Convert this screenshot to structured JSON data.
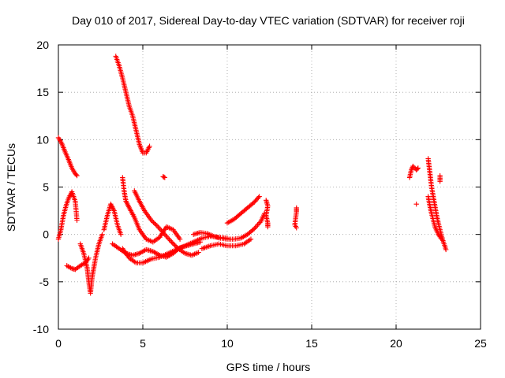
{
  "chart_data": {
    "type": "scatter",
    "title": "Day 010 of 2017, Sidereal Day-to-day VTEC variation (SDTVAR) for receiver roji",
    "xlabel": "GPS time / hours",
    "ylabel": "SDTVAR / TECUs",
    "xlim": [
      0,
      25
    ],
    "ylim": [
      -10,
      20
    ],
    "xticks": [
      0,
      5,
      10,
      15,
      20,
      25
    ],
    "yticks": [
      -10,
      -5,
      0,
      5,
      10,
      15,
      20
    ],
    "xtick_labels": [
      "0",
      "5",
      "10",
      "15",
      "20",
      "25"
    ],
    "ytick_labels": [
      "-10",
      "-5",
      "0",
      "5",
      "10",
      "15",
      "20"
    ],
    "grid": true,
    "marker": "+",
    "color": "#ff0000",
    "series": [
      {
        "name": "roji",
        "tracks": [
          [
            [
              0.0,
              10.2
            ],
            [
              0.2,
              9.6
            ],
            [
              0.4,
              8.7
            ],
            [
              0.6,
              7.9
            ],
            [
              0.8,
              7.0
            ],
            [
              1.0,
              6.4
            ],
            [
              1.1,
              6.2
            ]
          ],
          [
            [
              0.0,
              -0.5
            ],
            [
              0.15,
              0.5
            ],
            [
              0.3,
              2.0
            ],
            [
              0.45,
              3.0
            ],
            [
              0.6,
              3.8
            ],
            [
              0.8,
              4.5
            ],
            [
              1.0,
              3.5
            ],
            [
              1.1,
              1.5
            ]
          ],
          [
            [
              0.5,
              -3.3
            ],
            [
              0.8,
              -3.6
            ],
            [
              1.0,
              -3.7
            ],
            [
              1.3,
              -3.3
            ],
            [
              1.6,
              -3.0
            ],
            [
              1.8,
              -2.5
            ]
          ],
          [
            [
              1.3,
              -1.0
            ],
            [
              1.5,
              -2.0
            ],
            [
              1.7,
              -3.5
            ],
            [
              1.8,
              -5.0
            ],
            [
              1.9,
              -6.2
            ],
            [
              2.0,
              -4.5
            ],
            [
              2.2,
              -2.5
            ],
            [
              2.4,
              -1.0
            ],
            [
              2.6,
              0.0
            ]
          ],
          [
            [
              2.7,
              0.5
            ],
            [
              2.9,
              2.0
            ],
            [
              3.1,
              3.2
            ],
            [
              3.3,
              2.5
            ],
            [
              3.5,
              1.0
            ],
            [
              3.7,
              0.0
            ]
          ],
          [
            [
              3.4,
              18.8
            ],
            [
              3.6,
              17.8
            ],
            [
              3.8,
              16.5
            ],
            [
              4.0,
              15.0
            ],
            [
              4.2,
              13.5
            ],
            [
              4.4,
              12.5
            ],
            [
              4.6,
              11.0
            ],
            [
              4.8,
              9.5
            ],
            [
              5.0,
              8.6
            ],
            [
              5.2,
              8.6
            ],
            [
              5.4,
              9.3
            ]
          ],
          [
            [
              3.8,
              6.0
            ],
            [
              3.9,
              4.5
            ],
            [
              4.0,
              3.5
            ],
            [
              4.2,
              2.8
            ],
            [
              4.5,
              1.8
            ],
            [
              4.8,
              0.5
            ],
            [
              5.2,
              -0.5
            ],
            [
              5.6,
              -0.8
            ],
            [
              6.0,
              -0.3
            ],
            [
              6.4,
              0.8
            ],
            [
              6.8,
              0.5
            ],
            [
              7.2,
              -0.5
            ]
          ],
          [
            [
              3.8,
              -1.5
            ],
            [
              4.2,
              -2.5
            ],
            [
              4.6,
              -3.0
            ],
            [
              5.0,
              -3.0
            ],
            [
              5.5,
              -2.6
            ],
            [
              6.0,
              -2.4
            ],
            [
              6.5,
              -2.0
            ],
            [
              7.0,
              -1.6
            ],
            [
              7.5,
              -1.2
            ],
            [
              8.0,
              -0.8
            ],
            [
              8.5,
              -0.4
            ],
            [
              9.0,
              -0.2
            ],
            [
              9.5,
              -0.3
            ],
            [
              10.0,
              -0.4
            ]
          ],
          [
            [
              3.2,
              -1.0
            ],
            [
              3.6,
              -1.5
            ],
            [
              4.0,
              -2.0
            ],
            [
              4.4,
              -2.2
            ],
            [
              4.8,
              -2.0
            ],
            [
              5.2,
              -1.6
            ],
            [
              5.6,
              -1.8
            ],
            [
              6.0,
              -2.2
            ],
            [
              6.4,
              -2.4
            ],
            [
              6.8,
              -2.0
            ],
            [
              7.2,
              -1.4
            ],
            [
              7.6,
              -1.2
            ],
            [
              8.0,
              -1.0
            ],
            [
              8.4,
              -0.8
            ]
          ],
          [
            [
              4.5,
              4.6
            ],
            [
              4.8,
              3.5
            ],
            [
              5.1,
              2.5
            ],
            [
              5.5,
              1.5
            ],
            [
              5.9,
              0.8
            ],
            [
              6.3,
              0.0
            ],
            [
              6.7,
              -0.8
            ],
            [
              7.1,
              -1.5
            ],
            [
              7.5,
              -2.0
            ],
            [
              7.9,
              -2.2
            ],
            [
              8.3,
              -1.9
            ]
          ],
          [
            [
              8.0,
              0.0
            ],
            [
              8.4,
              0.2
            ],
            [
              8.8,
              0.1
            ],
            [
              9.2,
              -0.2
            ],
            [
              9.6,
              -0.4
            ],
            [
              10.0,
              -0.5
            ],
            [
              10.4,
              -0.5
            ],
            [
              10.8,
              -0.4
            ],
            [
              11.2,
              0.0
            ],
            [
              11.6,
              0.6
            ],
            [
              12.0,
              1.4
            ],
            [
              12.2,
              2.2
            ]
          ],
          [
            [
              8.5,
              -1.5
            ],
            [
              9.0,
              -1.2
            ],
            [
              9.5,
              -1.0
            ],
            [
              10.0,
              -1.2
            ],
            [
              10.5,
              -1.2
            ],
            [
              11.0,
              -1.0
            ],
            [
              11.4,
              -0.5
            ]
          ],
          [
            [
              10.0,
              1.2
            ],
            [
              10.4,
              1.6
            ],
            [
              10.8,
              2.2
            ],
            [
              11.2,
              2.8
            ],
            [
              11.6,
              3.4
            ],
            [
              11.9,
              4.0
            ]
          ],
          [
            [
              12.3,
              3.6
            ],
            [
              12.4,
              3.0
            ],
            [
              12.3,
              2.0
            ],
            [
              12.4,
              1.2
            ],
            [
              12.4,
              0.8
            ]
          ],
          [
            [
              14.1,
              2.8
            ],
            [
              14.1,
              2.4
            ],
            [
              14.0,
              1.0
            ],
            [
              14.1,
              0.7
            ]
          ],
          [
            [
              6.2,
              6.1
            ],
            [
              6.3,
              6.0
            ]
          ],
          [
            [
              20.8,
              6.0
            ],
            [
              20.9,
              6.8
            ],
            [
              21.0,
              7.2
            ],
            [
              21.2,
              6.8
            ],
            [
              21.3,
              7.0
            ]
          ],
          [
            [
              21.2,
              3.2
            ]
          ],
          [
            [
              21.9,
              8.0
            ],
            [
              22.0,
              6.5
            ],
            [
              22.1,
              5.0
            ],
            [
              22.2,
              4.0
            ],
            [
              22.3,
              3.0
            ],
            [
              22.4,
              2.0
            ],
            [
              22.5,
              1.2
            ],
            [
              22.6,
              0.5
            ],
            [
              22.7,
              -0.2
            ],
            [
              22.8,
              -0.8
            ],
            [
              22.9,
              -1.3
            ],
            [
              22.95,
              -1.6
            ]
          ],
          [
            [
              21.9,
              4.0
            ],
            [
              22.0,
              3.0
            ],
            [
              22.1,
              2.2
            ],
            [
              22.2,
              1.5
            ],
            [
              22.3,
              0.8
            ],
            [
              22.5,
              0.0
            ],
            [
              22.7,
              -0.5
            ]
          ],
          [
            [
              22.6,
              6.2
            ],
            [
              22.6,
              5.6
            ]
          ]
        ]
      }
    ]
  }
}
